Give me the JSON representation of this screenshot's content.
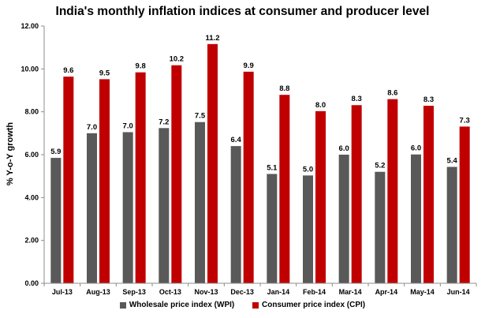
{
  "chart_data": {
    "type": "bar",
    "title": "India's monthly inflation indices at consumer and producer level",
    "xlabel": "",
    "ylabel": "% Y-o-Y growth",
    "ylim": [
      0,
      12
    ],
    "yticks": [
      "0.00",
      "2.00",
      "4.00",
      "6.00",
      "8.00",
      "10.00",
      "12.00"
    ],
    "grid": false,
    "legend_position": "bottom",
    "categories": [
      "Jul-13",
      "Aug-13",
      "Sep-13",
      "Oct-13",
      "Nov-13",
      "Dec-13",
      "Jan-14",
      "Feb-14",
      "Mar-14",
      "Apr-14",
      "May-14",
      "Jun-14"
    ],
    "series": [
      {
        "name": "Wholesale price index (WPI)",
        "color": "#595959",
        "values": [
          5.85,
          7.0,
          7.05,
          7.24,
          7.52,
          6.4,
          5.1,
          5.03,
          6.0,
          5.2,
          6.01,
          5.43
        ],
        "labels": [
          "5.9",
          "7.0",
          "7.0",
          "7.2",
          "7.5",
          "6.4",
          "5.1",
          "5.0",
          "6.0",
          "5.2",
          "6.0",
          "5.4"
        ]
      },
      {
        "name": "Consumer price index (CPI)",
        "color": "#c00000",
        "values": [
          9.64,
          9.52,
          9.84,
          10.17,
          11.16,
          9.87,
          8.79,
          8.03,
          8.31,
          8.59,
          8.28,
          7.31
        ],
        "labels": [
          "9.6",
          "9.5",
          "9.8",
          "10.2",
          "11.2",
          "9.9",
          "8.8",
          "8.0",
          "8.3",
          "8.6",
          "8.3",
          "7.3"
        ]
      }
    ]
  }
}
